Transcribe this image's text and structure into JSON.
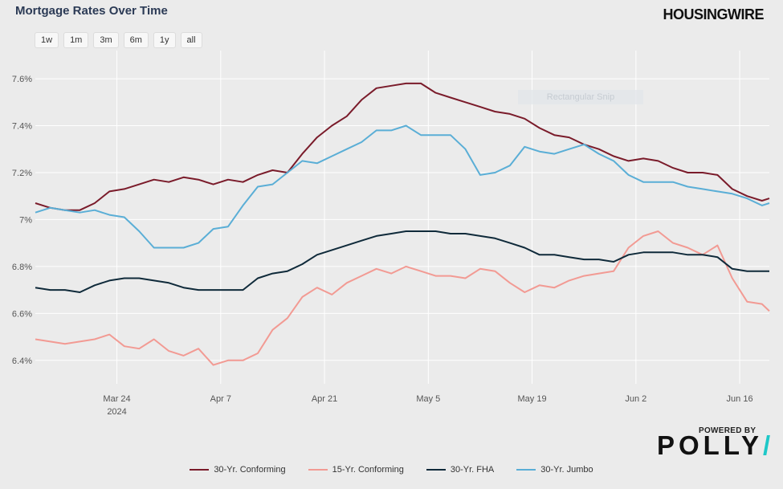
{
  "header": {
    "title": "Mortgage Rates Over Time",
    "brand": "HOUSINGWIRE"
  },
  "range_buttons": [
    "1w",
    "1m",
    "3m",
    "6m",
    "1y",
    "all"
  ],
  "overlay_text": "Rectangular Snip",
  "footer": {
    "powered_by": "POWERED BY",
    "logo_text": "POLLY",
    "logo_slash": "/"
  },
  "chart_data": {
    "type": "line",
    "title": "Mortgage Rates Over Time",
    "xlabel": "",
    "ylabel": "",
    "x_ticks": [
      "Mar 24",
      "Apr 7",
      "Apr 21",
      "May 5",
      "May 19",
      "Jun 2",
      "Jun 16"
    ],
    "x_year_label": "2024",
    "x_range": [
      "2024-03-13",
      "2024-06-20"
    ],
    "y_ticks": [
      "6.4%",
      "6.6%",
      "6.8%",
      "7%",
      "7.2%",
      "7.4%",
      "7.6%"
    ],
    "ylim": [
      6.3,
      7.72
    ],
    "grid": true,
    "legend_position": "bottom",
    "series": [
      {
        "name": "30-Yr. Conforming",
        "color": "#7a1b2a",
        "x": [
          "2024-03-13",
          "2024-03-15",
          "2024-03-17",
          "2024-03-19",
          "2024-03-21",
          "2024-03-23",
          "2024-03-25",
          "2024-03-27",
          "2024-03-29",
          "2024-03-31",
          "2024-04-02",
          "2024-04-04",
          "2024-04-06",
          "2024-04-08",
          "2024-04-10",
          "2024-04-12",
          "2024-04-14",
          "2024-04-16",
          "2024-04-18",
          "2024-04-20",
          "2024-04-22",
          "2024-04-24",
          "2024-04-26",
          "2024-04-28",
          "2024-04-30",
          "2024-05-02",
          "2024-05-04",
          "2024-05-06",
          "2024-05-08",
          "2024-05-10",
          "2024-05-12",
          "2024-05-14",
          "2024-05-16",
          "2024-05-18",
          "2024-05-20",
          "2024-05-22",
          "2024-05-24",
          "2024-05-26",
          "2024-05-28",
          "2024-05-30",
          "2024-06-01",
          "2024-06-03",
          "2024-06-05",
          "2024-06-07",
          "2024-06-09",
          "2024-06-11",
          "2024-06-13",
          "2024-06-15",
          "2024-06-17",
          "2024-06-19",
          "2024-06-20"
        ],
        "values": [
          7.07,
          7.05,
          7.04,
          7.04,
          7.07,
          7.12,
          7.13,
          7.15,
          7.17,
          7.16,
          7.18,
          7.17,
          7.15,
          7.17,
          7.16,
          7.19,
          7.21,
          7.2,
          7.28,
          7.35,
          7.4,
          7.44,
          7.51,
          7.56,
          7.57,
          7.58,
          7.58,
          7.54,
          7.52,
          7.5,
          7.48,
          7.46,
          7.45,
          7.43,
          7.39,
          7.36,
          7.35,
          7.32,
          7.3,
          7.27,
          7.25,
          7.26,
          7.25,
          7.22,
          7.2,
          7.2,
          7.19,
          7.13,
          7.1,
          7.08,
          7.09
        ]
      },
      {
        "name": "15-Yr. Conforming",
        "color": "#f29a93",
        "x": [
          "2024-03-13",
          "2024-03-15",
          "2024-03-17",
          "2024-03-19",
          "2024-03-21",
          "2024-03-23",
          "2024-03-25",
          "2024-03-27",
          "2024-03-29",
          "2024-03-31",
          "2024-04-02",
          "2024-04-04",
          "2024-04-06",
          "2024-04-08",
          "2024-04-10",
          "2024-04-12",
          "2024-04-14",
          "2024-04-16",
          "2024-04-18",
          "2024-04-20",
          "2024-04-22",
          "2024-04-24",
          "2024-04-26",
          "2024-04-28",
          "2024-04-30",
          "2024-05-02",
          "2024-05-04",
          "2024-05-06",
          "2024-05-08",
          "2024-05-10",
          "2024-05-12",
          "2024-05-14",
          "2024-05-16",
          "2024-05-18",
          "2024-05-20",
          "2024-05-22",
          "2024-05-24",
          "2024-05-26",
          "2024-05-28",
          "2024-05-30",
          "2024-06-01",
          "2024-06-03",
          "2024-06-05",
          "2024-06-07",
          "2024-06-09",
          "2024-06-11",
          "2024-06-13",
          "2024-06-15",
          "2024-06-17",
          "2024-06-19",
          "2024-06-20"
        ],
        "values": [
          6.49,
          6.48,
          6.47,
          6.48,
          6.49,
          6.51,
          6.46,
          6.45,
          6.49,
          6.44,
          6.42,
          6.45,
          6.38,
          6.4,
          6.4,
          6.43,
          6.53,
          6.58,
          6.67,
          6.71,
          6.68,
          6.73,
          6.76,
          6.79,
          6.77,
          6.8,
          6.78,
          6.76,
          6.76,
          6.75,
          6.79,
          6.78,
          6.73,
          6.69,
          6.72,
          6.71,
          6.74,
          6.76,
          6.77,
          6.78,
          6.88,
          6.93,
          6.95,
          6.9,
          6.88,
          6.85,
          6.89,
          6.75,
          6.65,
          6.64,
          6.61
        ]
      },
      {
        "name": "30-Yr. FHA",
        "color": "#0f2a3a",
        "x": [
          "2024-03-13",
          "2024-03-15",
          "2024-03-17",
          "2024-03-19",
          "2024-03-21",
          "2024-03-23",
          "2024-03-25",
          "2024-03-27",
          "2024-03-29",
          "2024-03-31",
          "2024-04-02",
          "2024-04-04",
          "2024-04-06",
          "2024-04-08",
          "2024-04-10",
          "2024-04-12",
          "2024-04-14",
          "2024-04-16",
          "2024-04-18",
          "2024-04-20",
          "2024-04-22",
          "2024-04-24",
          "2024-04-26",
          "2024-04-28",
          "2024-04-30",
          "2024-05-02",
          "2024-05-04",
          "2024-05-06",
          "2024-05-08",
          "2024-05-10",
          "2024-05-12",
          "2024-05-14",
          "2024-05-16",
          "2024-05-18",
          "2024-05-20",
          "2024-05-22",
          "2024-05-24",
          "2024-05-26",
          "2024-05-28",
          "2024-05-30",
          "2024-06-01",
          "2024-06-03",
          "2024-06-05",
          "2024-06-07",
          "2024-06-09",
          "2024-06-11",
          "2024-06-13",
          "2024-06-15",
          "2024-06-17",
          "2024-06-19",
          "2024-06-20"
        ],
        "values": [
          6.71,
          6.7,
          6.7,
          6.69,
          6.72,
          6.74,
          6.75,
          6.75,
          6.74,
          6.73,
          6.71,
          6.7,
          6.7,
          6.7,
          6.7,
          6.75,
          6.77,
          6.78,
          6.81,
          6.85,
          6.87,
          6.89,
          6.91,
          6.93,
          6.94,
          6.95,
          6.95,
          6.95,
          6.94,
          6.94,
          6.93,
          6.92,
          6.9,
          6.88,
          6.85,
          6.85,
          6.84,
          6.83,
          6.83,
          6.82,
          6.85,
          6.86,
          6.86,
          6.86,
          6.85,
          6.85,
          6.84,
          6.79,
          6.78,
          6.78,
          6.78
        ]
      },
      {
        "name": "30-Yr. Jumbo",
        "color": "#5aaed6",
        "x": [
          "2024-03-13",
          "2024-03-15",
          "2024-03-17",
          "2024-03-19",
          "2024-03-21",
          "2024-03-23",
          "2024-03-25",
          "2024-03-27",
          "2024-03-29",
          "2024-03-31",
          "2024-04-02",
          "2024-04-04",
          "2024-04-06",
          "2024-04-08",
          "2024-04-10",
          "2024-04-12",
          "2024-04-14",
          "2024-04-16",
          "2024-04-18",
          "2024-04-20",
          "2024-04-22",
          "2024-04-24",
          "2024-04-26",
          "2024-04-28",
          "2024-04-30",
          "2024-05-02",
          "2024-05-04",
          "2024-05-06",
          "2024-05-08",
          "2024-05-10",
          "2024-05-12",
          "2024-05-14",
          "2024-05-16",
          "2024-05-18",
          "2024-05-20",
          "2024-05-22",
          "2024-05-24",
          "2024-05-26",
          "2024-05-28",
          "2024-05-30",
          "2024-06-01",
          "2024-06-03",
          "2024-06-05",
          "2024-06-07",
          "2024-06-09",
          "2024-06-11",
          "2024-06-13",
          "2024-06-15",
          "2024-06-17",
          "2024-06-19",
          "2024-06-20"
        ],
        "values": [
          7.03,
          7.05,
          7.04,
          7.03,
          7.04,
          7.02,
          7.01,
          6.95,
          6.88,
          6.88,
          6.88,
          6.9,
          6.96,
          6.97,
          7.06,
          7.14,
          7.15,
          7.2,
          7.25,
          7.24,
          7.27,
          7.3,
          7.33,
          7.38,
          7.38,
          7.4,
          7.36,
          7.36,
          7.36,
          7.3,
          7.19,
          7.2,
          7.23,
          7.31,
          7.29,
          7.28,
          7.3,
          7.32,
          7.28,
          7.25,
          7.19,
          7.16,
          7.16,
          7.16,
          7.14,
          7.13,
          7.12,
          7.11,
          7.09,
          7.06,
          7.07
        ]
      }
    ]
  }
}
